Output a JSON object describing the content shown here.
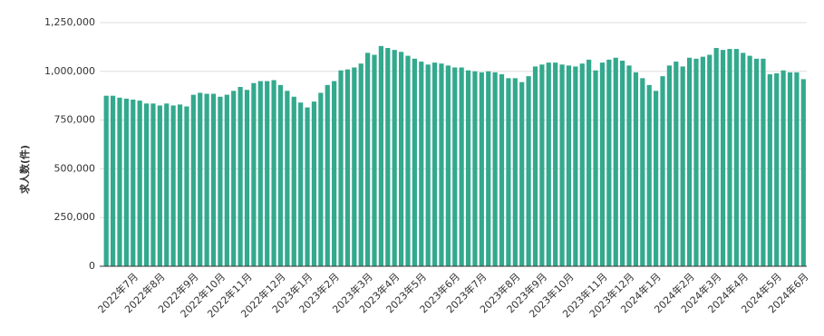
{
  "chart_data": {
    "type": "bar",
    "y_label": "求人数(件)",
    "categories": [
      null,
      null,
      null,
      null,
      "2022年7月",
      null,
      null,
      null,
      "2022年8月",
      null,
      null,
      null,
      null,
      "2022年9月",
      null,
      null,
      null,
      "2022年10月",
      null,
      null,
      null,
      "2022年11月",
      null,
      null,
      null,
      null,
      "2022年12月",
      null,
      null,
      null,
      "2023年1月",
      null,
      null,
      null,
      "2023年2月",
      null,
      null,
      null,
      null,
      "2023年3月",
      null,
      null,
      null,
      "2023年4月",
      null,
      null,
      null,
      "2023年5月",
      null,
      null,
      null,
      null,
      "2023年6月",
      null,
      null,
      null,
      "2023年7月",
      null,
      null,
      null,
      null,
      "2023年8月",
      null,
      null,
      null,
      "2023年9月",
      null,
      null,
      null,
      "2023年10月",
      null,
      null,
      null,
      null,
      "2023年11月",
      null,
      null,
      null,
      "2023年12月",
      null,
      null,
      null,
      "2024年1月",
      null,
      null,
      null,
      null,
      "2024年2月",
      null,
      null,
      null,
      "2024年3月",
      null,
      null,
      null,
      "2024年4月",
      null,
      null,
      null,
      null,
      "2024年5月",
      null,
      null,
      null,
      "2024年6月"
    ],
    "values": [
      875000,
      875000,
      865000,
      860000,
      855000,
      850000,
      835000,
      835000,
      825000,
      835000,
      825000,
      830000,
      820000,
      880000,
      890000,
      885000,
      885000,
      870000,
      880000,
      900000,
      920000,
      905000,
      940000,
      950000,
      950000,
      955000,
      930000,
      900000,
      870000,
      840000,
      815000,
      845000,
      890000,
      930000,
      950000,
      1005000,
      1010000,
      1020000,
      1040000,
      1095000,
      1085000,
      1130000,
      1120000,
      1110000,
      1100000,
      1080000,
      1065000,
      1050000,
      1035000,
      1045000,
      1040000,
      1030000,
      1020000,
      1020000,
      1005000,
      1000000,
      995000,
      1000000,
      995000,
      985000,
      965000,
      965000,
      945000,
      975000,
      1025000,
      1035000,
      1045000,
      1045000,
      1035000,
      1030000,
      1025000,
      1040000,
      1060000,
      1005000,
      1045000,
      1060000,
      1070000,
      1055000,
      1030000,
      995000,
      965000,
      930000,
      900000,
      975000,
      1030000,
      1050000,
      1025000,
      1070000,
      1065000,
      1075000,
      1085000,
      1120000,
      1110000,
      1115000,
      1115000,
      1095000,
      1080000,
      1065000,
      1065000,
      985000,
      990000,
      1005000,
      995000,
      995000,
      960000
    ],
    "color": "#33a98e",
    "ylim": [
      0,
      1250000
    ],
    "yticks": [
      0,
      {
        "value": 250000,
        "label": "250,000"
      },
      {
        "value": 500000,
        "label": "500,000"
      },
      {
        "value": 750000,
        "label": "750,000"
      },
      {
        "value": 1000000,
        "label": "1,000,000"
      },
      {
        "value": 1250000,
        "label": "1,250,000"
      }
    ],
    "grid": true
  }
}
